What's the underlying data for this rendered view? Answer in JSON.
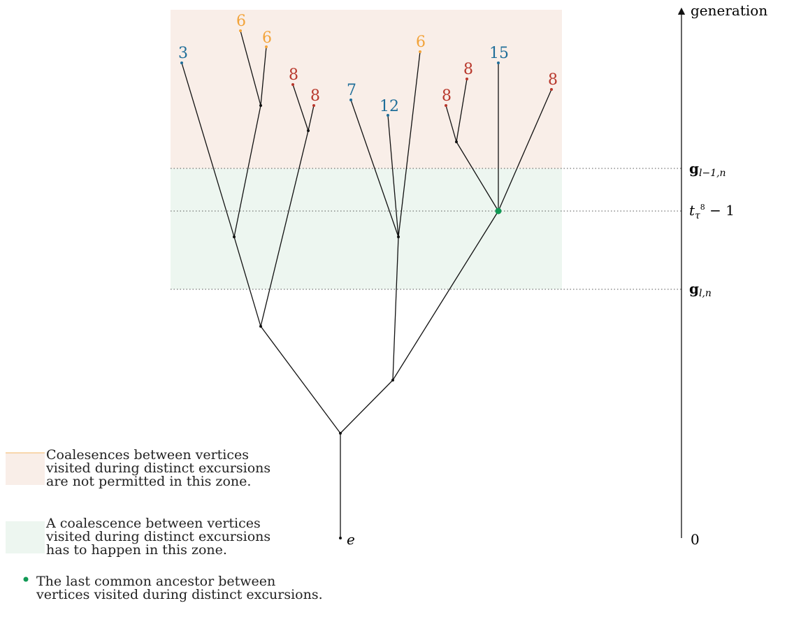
{
  "colors": {
    "orange": "#f2a33a",
    "red": "#b8372b",
    "blue": "#1f6e99",
    "green": "#119955",
    "zone_forbidden": "#f9eee8",
    "zone_required": "#edf6f0"
  },
  "axis": {
    "title": "generation",
    "zero": "0"
  },
  "levels": {
    "upper": "g",
    "upper_sub": "l−1,n",
    "middle_main": "t",
    "middle_sub": "τ",
    "middle_sup": "8",
    "middle_tail": " − 1",
    "lower": "g",
    "lower_sub": "l,n"
  },
  "root_label": "e",
  "leaves": [
    {
      "label": "3",
      "color": "blue"
    },
    {
      "label": "6",
      "color": "orange"
    },
    {
      "label": "6",
      "color": "orange"
    },
    {
      "label": "8",
      "color": "red"
    },
    {
      "label": "8",
      "color": "red"
    },
    {
      "label": "7",
      "color": "blue"
    },
    {
      "label": "12",
      "color": "blue"
    },
    {
      "label": "6",
      "color": "orange"
    },
    {
      "label": "8",
      "color": "red"
    },
    {
      "label": "8",
      "color": "red"
    },
    {
      "label": "15",
      "color": "blue"
    },
    {
      "label": "8",
      "color": "red"
    }
  ],
  "legend": {
    "forbidden": [
      "Coalesences between vertices",
      "visited during distinct excursions",
      "are not permitted in this zone."
    ],
    "required": [
      "A coalescence between vertices",
      "visited during distinct excursions",
      "has to happen in this zone."
    ],
    "ancestor": [
      "The last common ancestor between",
      "vertices visited during distinct excursions."
    ]
  }
}
